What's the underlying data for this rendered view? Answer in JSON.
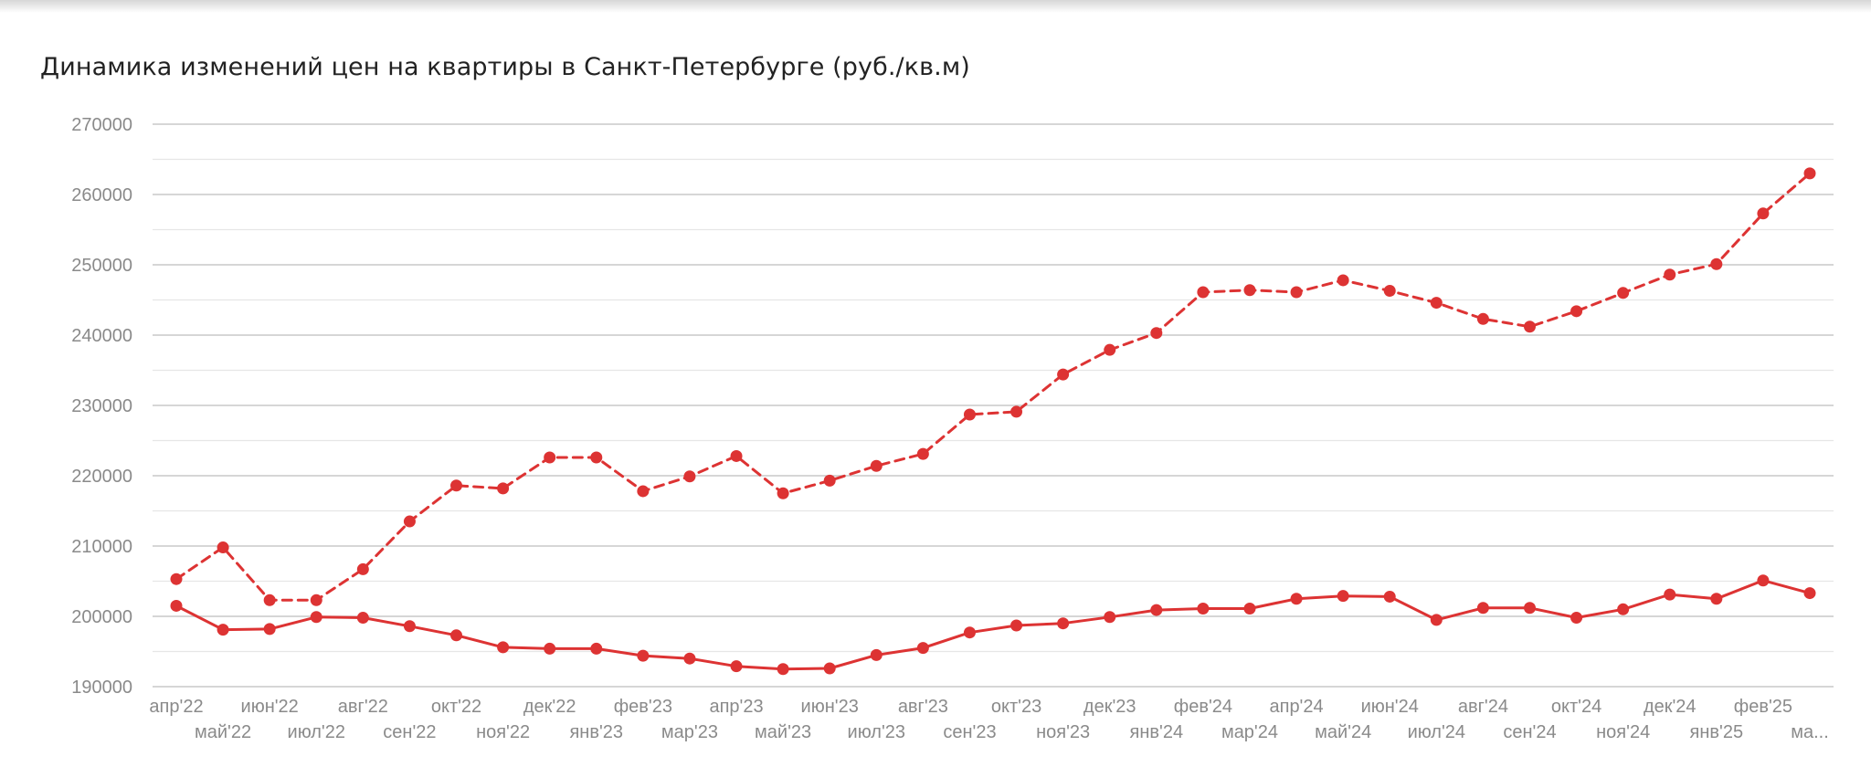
{
  "chart_data": {
    "type": "line",
    "title": "Динамика изменений цен на квартиры в Санкт-Петербурге (руб./кв.м)",
    "xlabel": "",
    "ylabel": "",
    "ylim": [
      190000,
      270000
    ],
    "yticks": [
      190000,
      200000,
      210000,
      220000,
      230000,
      240000,
      250000,
      260000,
      270000
    ],
    "grid": true,
    "legend": "none",
    "color": "#dd3333",
    "categories": [
      "апр'22",
      "май'22",
      "июн'22",
      "июл'22",
      "авг'22",
      "сен'22",
      "окт'22",
      "ноя'22",
      "дек'22",
      "янв'23",
      "фев'23",
      "мар'23",
      "апр'23",
      "май'23",
      "июн'23",
      "июл'23",
      "авг'23",
      "сен'23",
      "окт'23",
      "ноя'23",
      "дек'23",
      "янв'24",
      "фев'24",
      "мар'24",
      "апр'24",
      "май'24",
      "июн'24",
      "июл'24",
      "авг'24",
      "сен'24",
      "окт'24",
      "ноя'24",
      "дек'24",
      "янв'25",
      "фев'25",
      "ма..."
    ],
    "series": [
      {
        "style": "dashed",
        "values": [
          205300,
          209800,
          202300,
          202300,
          206700,
          213500,
          218600,
          218200,
          222600,
          222600,
          217800,
          219900,
          222800,
          217500,
          219300,
          221400,
          223100,
          228700,
          229100,
          234400,
          237900,
          240300,
          246100,
          246400,
          246100,
          247800,
          246300,
          244600,
          242300,
          241200,
          243400,
          246000,
          248600,
          250100,
          257300,
          263000
        ]
      },
      {
        "style": "solid",
        "values": [
          201500,
          198100,
          198200,
          199900,
          199800,
          198600,
          197300,
          195600,
          195400,
          195400,
          194400,
          194000,
          192900,
          192500,
          192600,
          194500,
          195500,
          197700,
          198700,
          199000,
          199900,
          200900,
          201100,
          201100,
          202500,
          202900,
          202800,
          199500,
          201200,
          201200,
          199800,
          201000,
          203100,
          202500,
          205100,
          203300
        ]
      }
    ]
  }
}
